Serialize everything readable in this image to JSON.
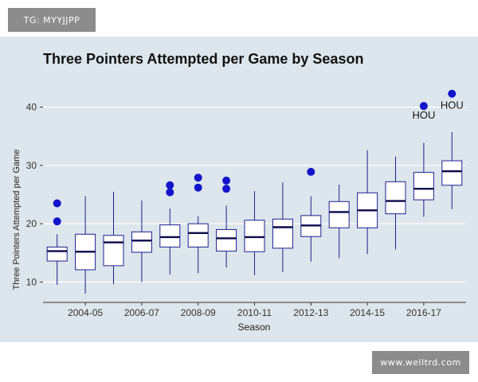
{
  "watermark_top": "TG: MYYJJPP",
  "watermark_bottom": "www.welltrd.com",
  "colors": {
    "panel_background": "#dce6ec",
    "gridline": "#ffffff",
    "box_fill": "#ffffff",
    "box_stroke": "#1f1f8f",
    "median_stroke": "#0a0a4a",
    "outlier_fill": "#1414cc",
    "axis_text": "#333333"
  },
  "chart_data": {
    "type": "boxplot",
    "title": "Three Pointers Attempted per Game by Season",
    "xlabel": "Season",
    "ylabel": "Three Pointers Attempted per Game",
    "ylim": [
      6.5,
      45
    ],
    "yticks": [
      10,
      20,
      30,
      40
    ],
    "xtick_labels": [
      {
        "category_index": 1,
        "label": "2004-05"
      },
      {
        "category_index": 3,
        "label": "2006-07"
      },
      {
        "category_index": 5,
        "label": "2008-09"
      },
      {
        "category_index": 7,
        "label": "2010-11"
      },
      {
        "category_index": 9,
        "label": "2012-13"
      },
      {
        "category_index": 11,
        "label": "2014-15"
      },
      {
        "category_index": 13,
        "label": "2016-17"
      }
    ],
    "grid": true,
    "boxes": [
      {
        "whisker_low": 9.5,
        "q1": 13.6,
        "median": 15.3,
        "q3": 16.0,
        "whisker_high": 18.2,
        "outliers": [
          20.4,
          23.5
        ]
      },
      {
        "whisker_low": 8.0,
        "q1": 12.1,
        "median": 15.2,
        "q3": 18.2,
        "whisker_high": 24.7,
        "outliers": []
      },
      {
        "whisker_low": 9.6,
        "q1": 12.8,
        "median": 16.8,
        "q3": 18.0,
        "whisker_high": 25.5,
        "outliers": []
      },
      {
        "whisker_low": 10.0,
        "q1": 15.1,
        "median": 17.1,
        "q3": 18.6,
        "whisker_high": 24.0,
        "outliers": []
      },
      {
        "whisker_low": 11.3,
        "q1": 16.0,
        "median": 17.7,
        "q3": 19.8,
        "whisker_high": 22.6,
        "outliers": [
          25.4,
          26.6
        ]
      },
      {
        "whisker_low": 11.5,
        "q1": 16.0,
        "median": 18.4,
        "q3": 20.0,
        "whisker_high": 21.3,
        "outliers": [
          26.2,
          27.9
        ]
      },
      {
        "whisker_low": 12.5,
        "q1": 15.3,
        "median": 17.5,
        "q3": 19.0,
        "whisker_high": 23.1,
        "outliers": [
          26.0,
          27.4
        ]
      },
      {
        "whisker_low": 11.2,
        "q1": 15.2,
        "median": 17.7,
        "q3": 20.6,
        "whisker_high": 25.6,
        "outliers": []
      },
      {
        "whisker_low": 11.7,
        "q1": 15.8,
        "median": 19.4,
        "q3": 20.8,
        "whisker_high": 27.1,
        "outliers": []
      },
      {
        "whisker_low": 13.5,
        "q1": 17.8,
        "median": 19.7,
        "q3": 21.4,
        "whisker_high": 24.7,
        "outliers": [
          28.9
        ]
      },
      {
        "whisker_low": 14.1,
        "q1": 19.3,
        "median": 22.0,
        "q3": 23.8,
        "whisker_high": 26.7,
        "outliers": []
      },
      {
        "whisker_low": 14.8,
        "q1": 19.3,
        "median": 22.3,
        "q3": 25.3,
        "whisker_high": 32.6,
        "outliers": []
      },
      {
        "whisker_low": 15.6,
        "q1": 21.7,
        "median": 23.9,
        "q3": 27.2,
        "whisker_high": 31.5,
        "outliers": []
      },
      {
        "whisker_low": 21.2,
        "q1": 24.1,
        "median": 26.0,
        "q3": 28.8,
        "whisker_high": 33.9,
        "outliers": [
          40.2
        ]
      },
      {
        "whisker_low": 22.5,
        "q1": 26.6,
        "median": 29.0,
        "q3": 30.8,
        "whisker_high": 35.7,
        "outliers": [
          42.3
        ]
      }
    ],
    "annotations": [
      {
        "text": "HOU",
        "category_index": 13,
        "y": 38.7
      },
      {
        "text": "HOU",
        "category_index": 14,
        "y": 40.4
      }
    ]
  }
}
